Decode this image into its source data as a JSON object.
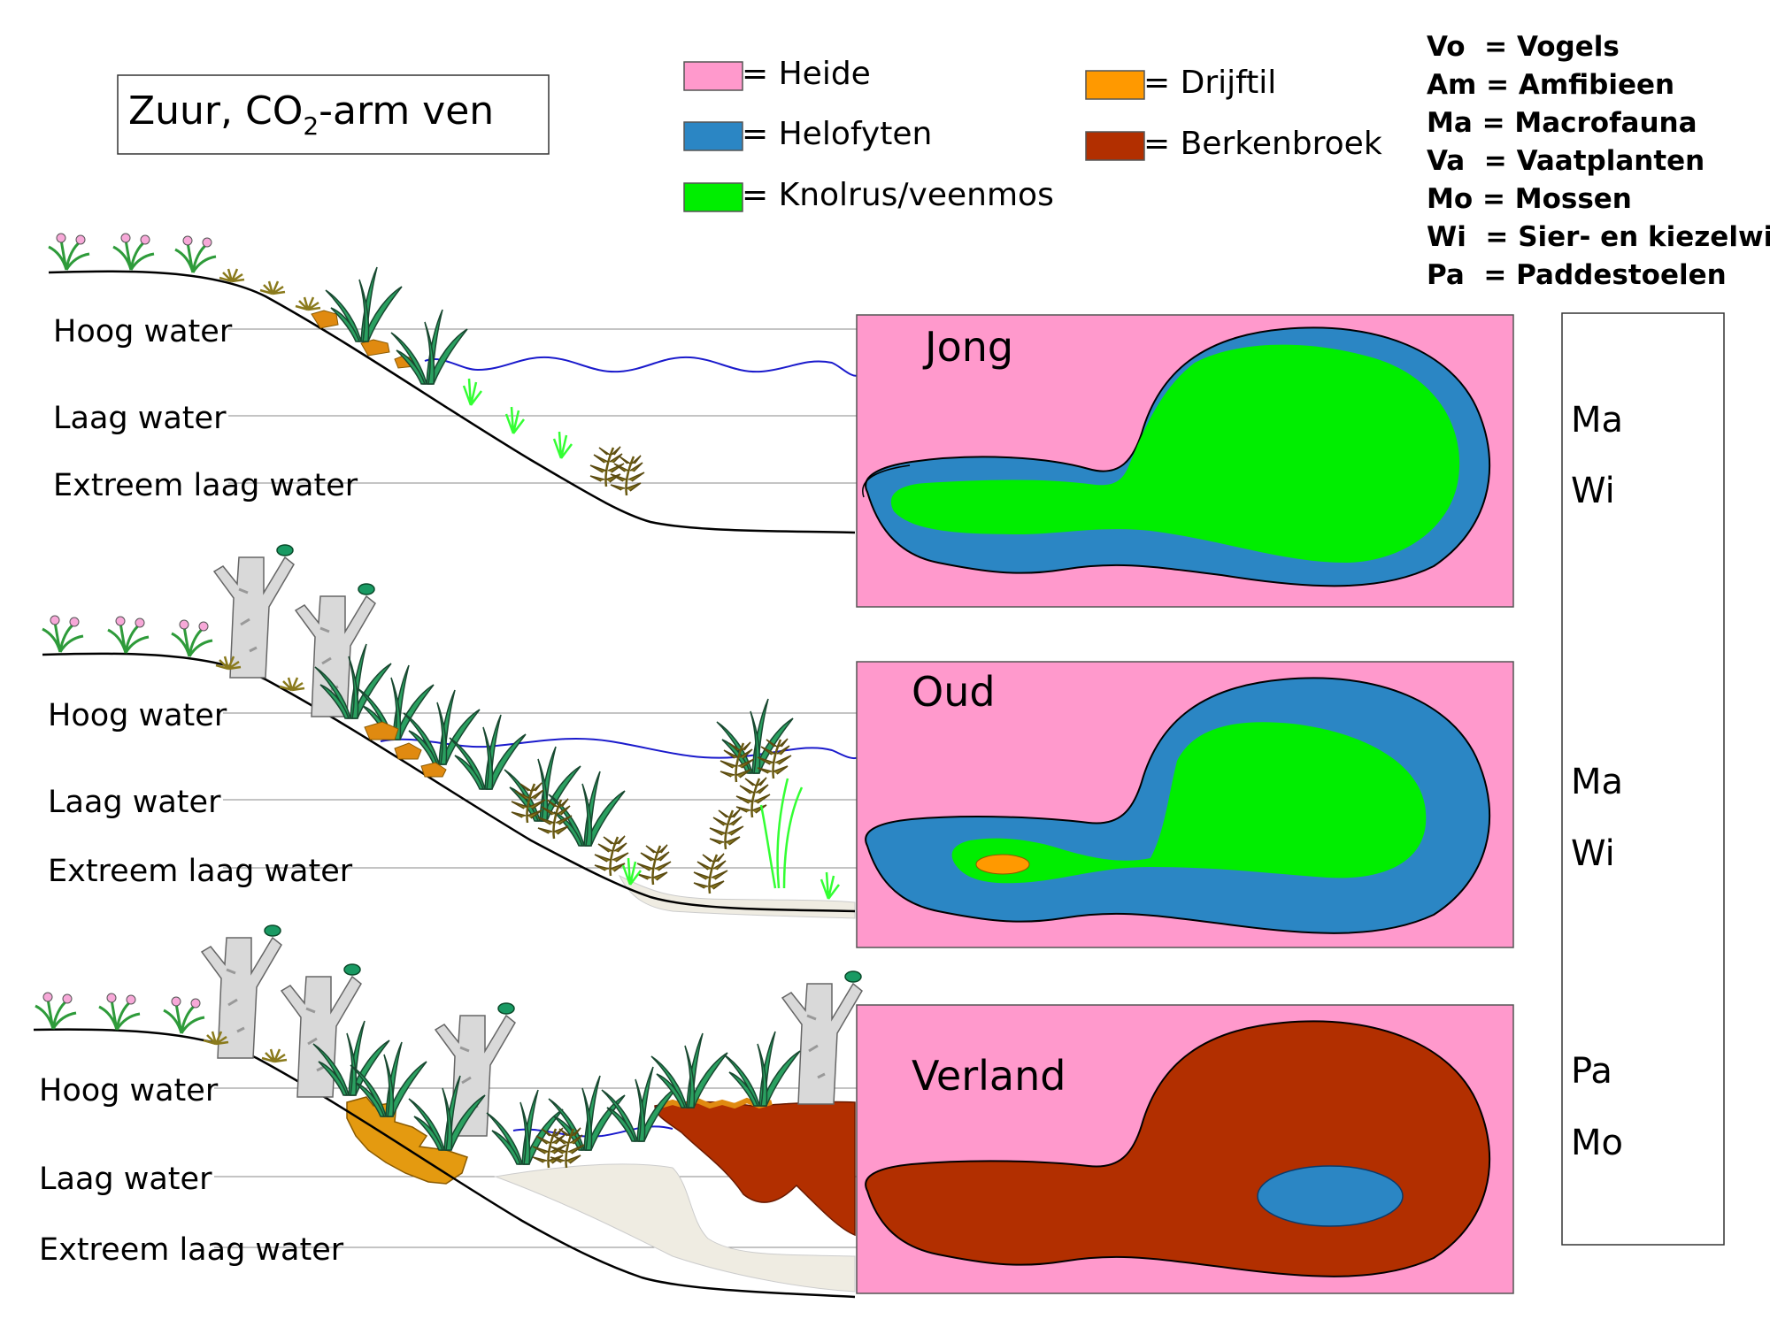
{
  "title": {
    "main": "Zuur, CO",
    "sub": "2",
    "rest": "-arm ven"
  },
  "legend": [
    {
      "label": "= Heide",
      "color": "#ff99cc"
    },
    {
      "label": "= Helofyten",
      "color": "#2b86c4"
    },
    {
      "label": "= Knolrus/veenmos",
      "color": "#00ee00"
    },
    {
      "label": "= Drijftil",
      "color": "#ff9900"
    },
    {
      "label": "= Berkenbroek",
      "color": "#b22f00"
    }
  ],
  "abbreviations": [
    {
      "code": "Vo",
      "sep": "  = ",
      "desc": "Vogels"
    },
    {
      "code": "Am",
      "sep": " = ",
      "desc": "Amfibieen"
    },
    {
      "code": "Ma",
      "sep": " = ",
      "desc": "Macrofauna"
    },
    {
      "code": "Va",
      "sep": "  = ",
      "desc": "Vaatplanten"
    },
    {
      "code": "Mo",
      "sep": " = ",
      "desc": "Mossen"
    },
    {
      "code": "Wi",
      "sep": "  = ",
      "desc": "Sier- en kiezelwier"
    },
    {
      "code": "Pa",
      "sep": "  = ",
      "desc": "Paddestoelen"
    }
  ],
  "water_levels": {
    "high": "Hoog water",
    "low": "Laag water",
    "extreme": "Extreem laag water"
  },
  "stages": [
    {
      "name": "Jong",
      "species": [
        "Ma",
        "Wi"
      ]
    },
    {
      "name": "Oud",
      "species": [
        "Ma",
        "Wi"
      ]
    },
    {
      "name": "Verland",
      "species": [
        "Pa",
        "Mo"
      ]
    }
  ],
  "colors": {
    "heide": "#ff99cc",
    "helofyten": "#2b86c4",
    "knolrus": "#00ee00",
    "drijftil": "#ff9900",
    "berkenbroek": "#b22f00",
    "water_line": "#1a1acc",
    "sediment": "#efece2"
  }
}
